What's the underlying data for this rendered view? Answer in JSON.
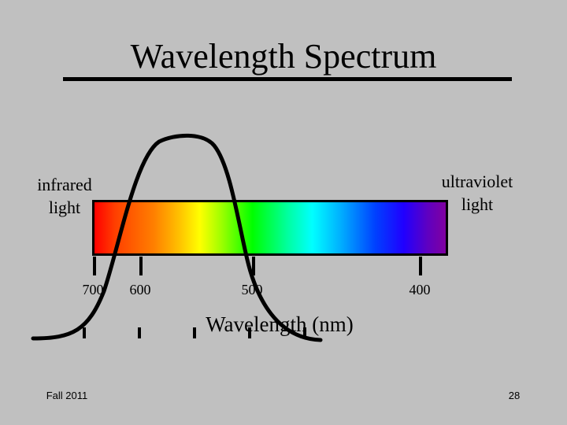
{
  "slide": {
    "title": "Wavelength Spectrum",
    "left_label_line1": "infrared",
    "left_label_line2": "light",
    "right_label_line1": "ultraviolet",
    "right_label_line2": "light",
    "tick_labels": [
      "700",
      "600",
      "500",
      "400"
    ],
    "axis_title": "Wavelength (nm)",
    "footer_left": "Fall 2011",
    "footer_right": "28"
  },
  "colors": {
    "background": "#c0c0c0",
    "text": "#000000",
    "spectrum_start": "#ff0000",
    "spectrum_end": "#8000a0"
  }
}
